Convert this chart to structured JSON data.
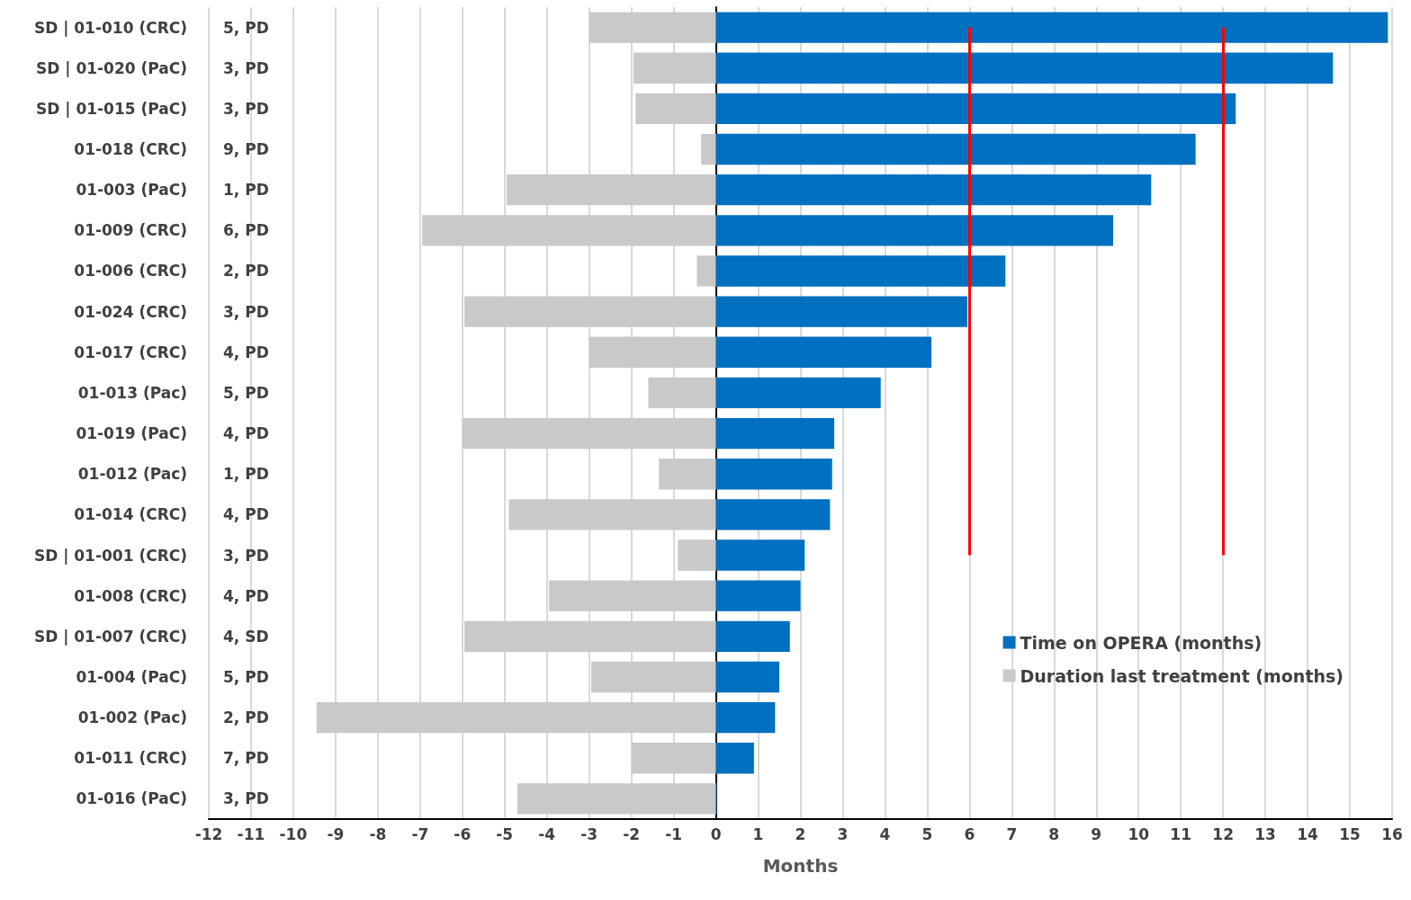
{
  "chart_data": {
    "type": "bar",
    "orientation": "horizontal",
    "xlabel": "Months",
    "categories": [
      "SD | 01-010 (CRC)",
      "SD | 01-020 (PaC)",
      "SD | 01-015 (PaC)",
      "01-018 (CRC)",
      "01-003 (PaC)",
      "01-009 (CRC)",
      "01-006 (CRC)",
      "01-024 (CRC)",
      "01-017 (CRC)",
      "01-013 (Pac)",
      "01-019 (PaC)",
      "01-012 (Pac)",
      "01-014 (CRC)",
      "SD | 01-001 (CRC)",
      "01-008 (CRC)",
      "SD | 01-007 (CRC)",
      "01-004 (PaC)",
      "01-002 (Pac)",
      "01-011 (CRC)",
      "01-016 (PaC)"
    ],
    "y2_categories": [
      "5, PD",
      "3, PD",
      "3, PD",
      "9, PD",
      "1, PD",
      "6, PD",
      "2, PD",
      "3, PD",
      "4, PD",
      "5, PD",
      "4, PD",
      "1, PD",
      "4, PD",
      "3, PD",
      "4, PD",
      "4, SD",
      "5, PD",
      "2, PD",
      "7, PD",
      "3, PD"
    ],
    "series": [
      {
        "name": "Time on OPERA (months)",
        "color": "#0070c0",
        "values": [
          15.9,
          14.6,
          12.3,
          11.35,
          10.3,
          9.4,
          6.85,
          5.95,
          5.1,
          3.9,
          2.8,
          2.75,
          2.7,
          2.1,
          2.0,
          1.75,
          1.5,
          1.4,
          0.9,
          0.02
        ]
      },
      {
        "name": "Duration last treatment (months)",
        "color": "#c9c9c9",
        "values": [
          -3.0,
          -1.95,
          -1.9,
          -0.35,
          -4.95,
          -6.95,
          -0.45,
          -5.95,
          -3.0,
          -1.6,
          -6.0,
          -1.35,
          -4.9,
          -0.9,
          -3.95,
          -5.95,
          -2.95,
          -9.45,
          -2.0,
          -4.7
        ]
      }
    ],
    "xlim": [
      -12,
      16
    ],
    "xticks": [
      -12,
      -11,
      -10,
      -9,
      -8,
      -7,
      -6,
      -5,
      -4,
      -3,
      -2,
      -1,
      0,
      1,
      2,
      3,
      4,
      5,
      6,
      7,
      8,
      9,
      10,
      11,
      12,
      13,
      14,
      15,
      16
    ],
    "ref_lines": [
      {
        "axis": "x",
        "value": 6,
        "color": "#ff0000"
      },
      {
        "axis": "x",
        "value": 12,
        "color": "#ff0000"
      }
    ],
    "grid": "x",
    "legend": "bottom right",
    "stacked": true
  }
}
